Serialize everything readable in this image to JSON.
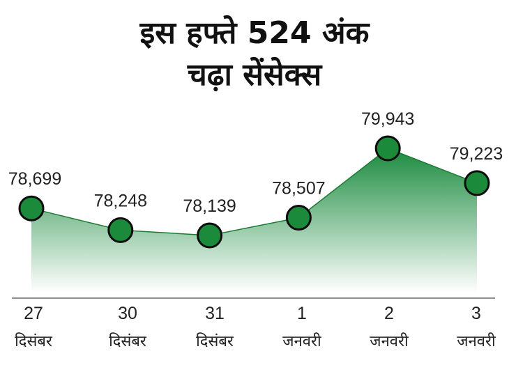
{
  "chart_data": {
    "type": "area",
    "title_lines": [
      "इस हफ्ते 524 अंक",
      "चढ़ा सेंसेक्स"
    ],
    "xlabel": "",
    "ylabel": "",
    "categories": [
      {
        "day": "27",
        "month": "दिसंबर"
      },
      {
        "day": "30",
        "month": "दिसंबर"
      },
      {
        "day": "31",
        "month": "दिसंबर"
      },
      {
        "day": "1",
        "month": "जनवरी"
      },
      {
        "day": "2",
        "month": "जनवरी"
      },
      {
        "day": "3",
        "month": "जनवरी"
      }
    ],
    "values": [
      78699,
      78248,
      78139,
      78507,
      79943,
      79223
    ],
    "value_labels": [
      "78,699",
      "78,248",
      "78,139",
      "78,507",
      "79,943",
      "79,223"
    ],
    "ylim": [
      77600,
      80100
    ],
    "grid": false,
    "legend": "none",
    "colors": {
      "area_top": "#1a8a3e",
      "area_bottom": "#ffffff",
      "marker_fill": "#1b8a3a",
      "marker_stroke": "#0d0d0d",
      "line": "#1b7a34"
    }
  }
}
